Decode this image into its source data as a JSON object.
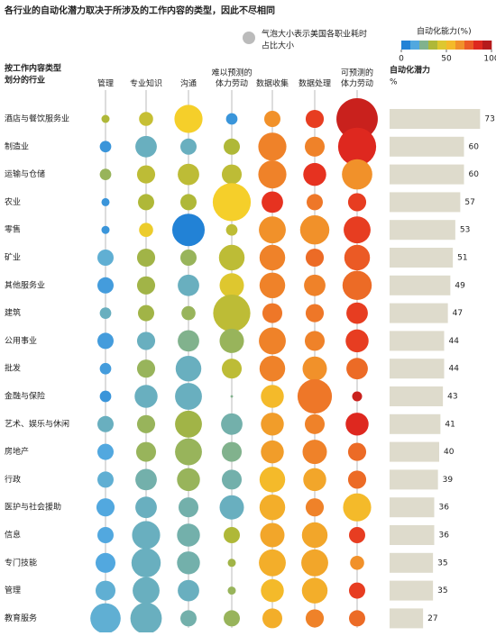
{
  "chart_data": {
    "type": "bubble-matrix",
    "title": "各行业的自动化潜力取决于所涉及的工作内容的类型，因此不尽相同",
    "size_note": [
      "气泡大小表示美国各职业耗时",
      "占比大小"
    ],
    "color_title": "自动化能力(%)",
    "clim": [
      0,
      100
    ],
    "cticks": [
      0,
      50,
      100
    ],
    "colormap": [
      "#0a6fd1",
      "#5aaee0",
      "#a7b53a",
      "#f5cf2a",
      "#f08a2a",
      "#e52a1f",
      "#a0141a"
    ],
    "row_header": [
      "按工作内容类型",
      "划分的行业"
    ],
    "columns": [
      [
        "管理"
      ],
      [
        "专业知识"
      ],
      [
        "沟通"
      ],
      [
        "难以预测的",
        "体力劳动"
      ],
      [
        "数据收集"
      ],
      [
        "数据处理"
      ],
      [
        "可预测的",
        "体力劳动"
      ]
    ],
    "categories": [
      "酒店与餐饮服务业",
      "制造业",
      "运输与仓储",
      "农业",
      "零售",
      "矿业",
      "其他服务业",
      "建筑",
      "公用事业",
      "批发",
      "金融与保险",
      "艺术、娱乐与休闲",
      "房地产",
      "行政",
      "医护与社会援助",
      "信息",
      "专门技能",
      "管理",
      "教育服务"
    ],
    "series": [
      {
        "name": "管理",
        "values": [
          35,
          10,
          30,
          10,
          10,
          18,
          12,
          20,
          12,
          12,
          10,
          20,
          15,
          18,
          15,
          15,
          15,
          18,
          18
        ],
        "sizes": [
          1,
          2,
          2,
          1,
          1,
          4,
          4,
          2,
          4,
          2,
          2,
          4,
          4,
          4,
          5,
          4,
          6,
          6,
          14
        ]
      },
      {
        "name": "专业知识",
        "values": [
          40,
          20,
          38,
          35,
          48,
          32,
          32,
          32,
          20,
          30,
          20,
          30,
          30,
          22,
          20,
          20,
          20,
          20,
          20
        ],
        "sizes": [
          3,
          7,
          5,
          4,
          3,
          5,
          5,
          4,
          5,
          5,
          8,
          5,
          6,
          7,
          7,
          12,
          13,
          11,
          15
        ]
      },
      {
        "name": "沟通",
        "values": [
          50,
          20,
          38,
          35,
          5,
          30,
          20,
          30,
          25,
          20,
          20,
          32,
          30,
          30,
          22,
          22,
          22,
          20,
          22
        ],
        "sizes": [
          12,
          4,
          7,
          4,
          16,
          4,
          7,
          3,
          7,
          10,
          11,
          11,
          11,
          8,
          6,
          8,
          8,
          7,
          4
        ]
      },
      {
        "name": "难以预测的体力劳动",
        "values": [
          10,
          35,
          38,
          50,
          38,
          38,
          45,
          38,
          30,
          38,
          25,
          22,
          25,
          22,
          20,
          35,
          32,
          30,
          30
        ],
        "sizes": [
          2,
          4,
          6,
          22,
          2,
          10,
          9,
          21,
          9,
          6,
          0.1,
          7,
          6,
          6,
          9,
          4,
          1,
          1,
          4
        ]
      },
      {
        "name": "数据收集",
        "values": [
          65,
          68,
          68,
          82,
          65,
          68,
          68,
          70,
          68,
          68,
          55,
          62,
          62,
          55,
          58,
          60,
          58,
          55,
          58
        ],
        "sizes": [
          4,
          12,
          12,
          7,
          11,
          10,
          10,
          6,
          11,
          10,
          8,
          8,
          8,
          10,
          10,
          9,
          11,
          8,
          6
        ]
      },
      {
        "name": "数据处理",
        "values": [
          80,
          68,
          82,
          70,
          65,
          72,
          68,
          70,
          68,
          65,
          70,
          68,
          68,
          60,
          68,
          60,
          60,
          58,
          68
        ],
        "sizes": [
          5,
          6,
          8,
          4,
          13,
          5,
          7,
          5,
          6,
          9,
          18,
          6,
          9,
          8,
          5,
          10,
          11,
          10,
          5
        ]
      },
      {
        "name": "可预测的体力劳动",
        "values": [
          90,
          85,
          65,
          80,
          80,
          75,
          72,
          80,
          80,
          72,
          90,
          85,
          72,
          72,
          55,
          80,
          65,
          80,
          72
        ],
        "sizes": [
          26,
          22,
          14,
          5,
          11,
          10,
          13,
          7,
          8,
          7,
          1.5,
          8,
          5,
          5,
          12,
          4,
          3,
          4,
          4
        ]
      }
    ],
    "potential_title": "自动化潜力",
    "potential_unit": "%",
    "potential": [
      73,
      60,
      60,
      57,
      53,
      51,
      49,
      47,
      44,
      44,
      43,
      41,
      40,
      39,
      36,
      36,
      35,
      35,
      27
    ],
    "xlim": [
      0,
      80
    ],
    "bar_color": "#dedbcc"
  }
}
